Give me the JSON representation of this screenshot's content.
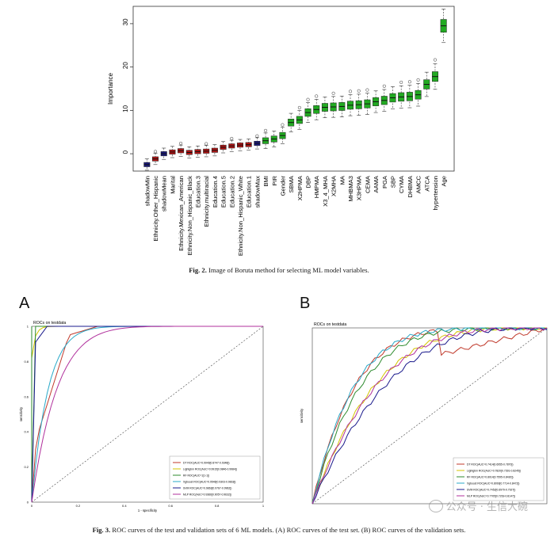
{
  "fig2": {
    "caption_label": "Fig. 2.",
    "caption_text": "Image of Boruta method for selecting ML model variables.",
    "chart_data": {
      "type": "box",
      "ylabel": "Importance",
      "ylim": [
        -4,
        34
      ],
      "yticks": [
        0,
        10,
        20,
        30
      ],
      "colors": {
        "shadow": "#1a1a7a",
        "rejected": "#b01515",
        "confirmed": "#22aa22"
      },
      "categories": [
        {
          "name": "shadowMin",
          "median": -2.5,
          "status": "shadow"
        },
        {
          "name": "Ethnicity.Other_Hispanic",
          "median": -1.2,
          "status": "rejected"
        },
        {
          "name": "shadowMean",
          "median": 0.0,
          "status": "shadow"
        },
        {
          "name": "Marital",
          "median": 0.4,
          "status": "rejected"
        },
        {
          "name": "Ethnicity.Mexican_American",
          "median": 0.7,
          "status": "rejected"
        },
        {
          "name": "Ethnicity.Non_Hispanic_Black",
          "median": 0.3,
          "status": "rejected"
        },
        {
          "name": "Education.3",
          "median": 0.5,
          "status": "rejected"
        },
        {
          "name": "Ethnicity.multiracial",
          "median": 0.6,
          "status": "rejected"
        },
        {
          "name": "Education.4",
          "median": 0.8,
          "status": "rejected"
        },
        {
          "name": "Education.5",
          "median": 1.5,
          "status": "rejected"
        },
        {
          "name": "Education.2",
          "median": 1.8,
          "status": "rejected"
        },
        {
          "name": "Ethnicity.Non_Hispanic_White",
          "median": 2.0,
          "status": "rejected"
        },
        {
          "name": "Education.1",
          "median": 2.1,
          "status": "rejected"
        },
        {
          "name": "shadowMax",
          "median": 2.4,
          "status": "shadow"
        },
        {
          "name": "BMI",
          "median": 3.0,
          "status": "confirmed"
        },
        {
          "name": "PIR",
          "median": 3.4,
          "status": "confirmed"
        },
        {
          "name": "Gender",
          "median": 4.2,
          "status": "confirmed"
        },
        {
          "name": "SBMA",
          "median": 7.2,
          "status": "confirmed"
        },
        {
          "name": "X2HPMA",
          "median": 7.8,
          "status": "confirmed"
        },
        {
          "name": "DBP",
          "median": 9.5,
          "status": "confirmed"
        },
        {
          "name": "HMPMA",
          "median": 10.2,
          "status": "confirmed"
        },
        {
          "name": "X3_4_MHA",
          "median": 10.7,
          "status": "confirmed"
        },
        {
          "name": "X2MHA",
          "median": 10.8,
          "status": "confirmed"
        },
        {
          "name": "MA",
          "median": 10.9,
          "status": "confirmed"
        },
        {
          "name": "MHBMA3",
          "median": 11.2,
          "status": "confirmed"
        },
        {
          "name": "X3HPMA",
          "median": 11.3,
          "status": "confirmed"
        },
        {
          "name": "CEMA",
          "median": 11.5,
          "status": "confirmed"
        },
        {
          "name": "AAMA",
          "median": 12.0,
          "status": "confirmed"
        },
        {
          "name": "PGA",
          "median": 12.3,
          "status": "confirmed"
        },
        {
          "name": "SBP",
          "median": 12.9,
          "status": "confirmed"
        },
        {
          "name": "CYMA",
          "median": 13.1,
          "status": "confirmed"
        },
        {
          "name": "DHBMA",
          "median": 13.2,
          "status": "confirmed"
        },
        {
          "name": "AMCC",
          "median": 13.6,
          "status": "confirmed"
        },
        {
          "name": "ATCA",
          "median": 16.0,
          "status": "confirmed"
        },
        {
          "name": "hypertension",
          "median": 17.8,
          "status": "confirmed"
        },
        {
          "name": "Age",
          "median": 29.5,
          "status": "confirmed"
        }
      ]
    }
  },
  "fig3": {
    "caption_label": "Fig. 3.",
    "caption_text": "ROC curves of the test and validation sets of 6 ML models. (A) ROC curves of the test set. (B) ROC curves of the validation sets.",
    "panel_a": {
      "letter": "A",
      "title": "ROCs on testdata",
      "ylabel": "sensitivity",
      "xlabel": "1 - specificity",
      "xticks": [
        "0",
        "0.2",
        "0.4",
        "0.6",
        "0.8",
        "1"
      ],
      "yticks": [
        "0",
        "0.2",
        "0.4",
        "0.6",
        "0.8",
        "1"
      ],
      "chart_data": {
        "type": "line",
        "legend_position": "bottom-right",
        "series": [
          {
            "name": "DT ROC(AUC=0.9046[0.8747-0.9348])",
            "color": "#c0392b"
          },
          {
            "name": "Lightgbm ROC(AUC=0.9915[0.9846-0.9984])",
            "color": "#d4c400"
          },
          {
            "name": "RF ROC(AUC=1[1-1])",
            "color": "#2e8b2e"
          },
          {
            "name": "Xgboost ROC(AUC=0.9546[0.9303-0.9818])",
            "color": "#2aa9c9"
          },
          {
            "name": "SVM ROC(AUC=0.9863[0.9767-0.9962])",
            "color": "#1a1a8c"
          },
          {
            "name": "MLP ROC(AUC=0.9366[0.9057-0.9632])",
            "color": "#b0309c"
          }
        ]
      }
    },
    "panel_b": {
      "letter": "B",
      "title": "ROCs on testdata",
      "ylabel": "sensitivity",
      "xlabel": "",
      "chart_data": {
        "type": "line",
        "legend_position": "bottom-right",
        "series": [
          {
            "name": "DT ROC(AUC=0.7414[0.6955-0.7870])",
            "color": "#c0392b"
          },
          {
            "name": "Lightgbm ROC(AUC=0.7820[0.7391-0.8245])",
            "color": "#d4c400"
          },
          {
            "name": "RF ROC(AUC=0.8014[0.7595-0.8430])",
            "color": "#2e8b2e"
          },
          {
            "name": "Xgboost ROC(AUC=0.8093[0.7714-0.8472])",
            "color": "#2aa9c9"
          },
          {
            "name": "SVM ROC(AUC=0.7452[0.6979-0.7927])",
            "color": "#1a1a8c"
          },
          {
            "name": "MLP ROC(AUC=0.7705[0.7263-0.8147])",
            "color": "#b0309c"
          }
        ]
      }
    },
    "watermark": "公众号 · 生信大碗"
  }
}
